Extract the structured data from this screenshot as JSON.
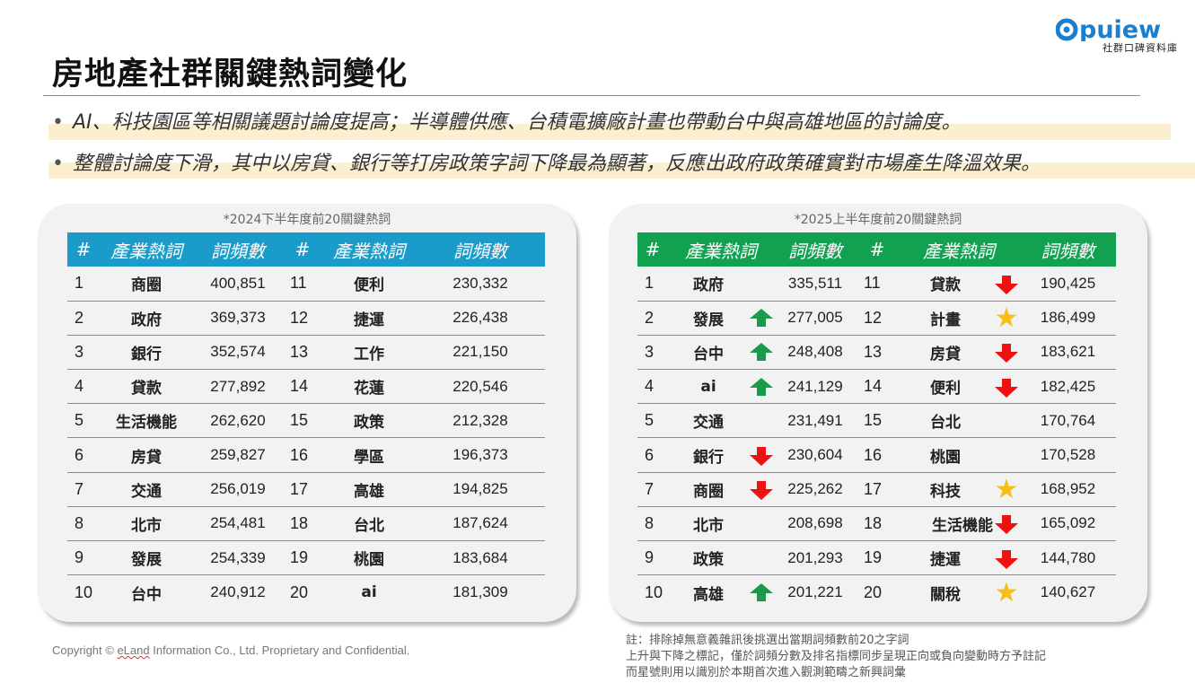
{
  "header": {
    "title": "房地產社群關鍵熱詞變化",
    "logo_word": "Opuiew",
    "logo_subtitle": "社群口碑資料庫",
    "logo_color": "#1b7fd0"
  },
  "bullets": [
    "AI、科技園區等相關議題討論度提高；半導體供應、台積電擴廠計畫也帶動台中與高雄地區的討論度。",
    "整體討論度下滑，其中以房貸、銀行等打房政策字詞下降最為顯著，反應出政府政策確實對市場產生降溫效果。"
  ],
  "highlight_color": "#fbefcf",
  "left_table": {
    "caption": "*2024下半年度前20關鍵熱詞",
    "header_color": "#1b9bc9",
    "columns": [
      "#",
      "產業熱詞",
      "詞頻數",
      "#",
      "產業熱詞",
      "詞頻數"
    ],
    "rows": [
      {
        "r1": "1",
        "k1": "商圈",
        "v1": "400,851",
        "r2": "11",
        "k2": "便利",
        "v2": "230,332"
      },
      {
        "r1": "2",
        "k1": "政府",
        "v1": "369,373",
        "r2": "12",
        "k2": "捷運",
        "v2": "226,438"
      },
      {
        "r1": "3",
        "k1": "銀行",
        "v1": "352,574",
        "r2": "13",
        "k2": "工作",
        "v2": "221,150"
      },
      {
        "r1": "4",
        "k1": "貸款",
        "v1": "277,892",
        "r2": "14",
        "k2": "花蓮",
        "v2": "220,546"
      },
      {
        "r1": "5",
        "k1": "生活機能",
        "v1": "262,620",
        "r2": "15",
        "k2": "政策",
        "v2": "212,328"
      },
      {
        "r1": "6",
        "k1": "房貸",
        "v1": "259,827",
        "r2": "16",
        "k2": "學區",
        "v2": "196,373"
      },
      {
        "r1": "7",
        "k1": "交通",
        "v1": "256,019",
        "r2": "17",
        "k2": "高雄",
        "v2": "194,825"
      },
      {
        "r1": "8",
        "k1": "北市",
        "v1": "254,481",
        "r2": "18",
        "k2": "台北",
        "v2": "187,624"
      },
      {
        "r1": "9",
        "k1": "發展",
        "v1": "254,339",
        "r2": "19",
        "k2": "桃園",
        "v2": "183,684"
      },
      {
        "r1": "10",
        "k1": "台中",
        "v1": "240,912",
        "r2": "20",
        "k2": "ai",
        "v2": "181,309"
      }
    ]
  },
  "right_table": {
    "caption": "*2025上半年度前20關鍵熱詞",
    "header_color": "#12a150",
    "columns": [
      "#",
      "產業熱詞",
      "詞頻數",
      "#",
      "產業熱詞",
      "詞頻數"
    ],
    "rows": [
      {
        "r1": "1",
        "k1": "政府",
        "m1": "",
        "v1": "335,511",
        "r2": "11",
        "k2": "貸款",
        "m2": "down",
        "v2": "190,425"
      },
      {
        "r1": "2",
        "k1": "發展",
        "m1": "up",
        "v1": "277,005",
        "r2": "12",
        "k2": "計畫",
        "m2": "star",
        "v2": "186,499"
      },
      {
        "r1": "3",
        "k1": "台中",
        "m1": "up",
        "v1": "248,408",
        "r2": "13",
        "k2": "房貸",
        "m2": "down",
        "v2": "183,621"
      },
      {
        "r1": "4",
        "k1": "ai",
        "m1": "up",
        "v1": "241,129",
        "r2": "14",
        "k2": "便利",
        "m2": "down",
        "v2": "182,425"
      },
      {
        "r1": "5",
        "k1": "交通",
        "m1": "",
        "v1": "231,491",
        "r2": "15",
        "k2": "台北",
        "m2": "",
        "v2": "170,764"
      },
      {
        "r1": "6",
        "k1": "銀行",
        "m1": "down",
        "v1": "230,604",
        "r2": "16",
        "k2": "桃園",
        "m2": "",
        "v2": "170,528"
      },
      {
        "r1": "7",
        "k1": "商圈",
        "m1": "down",
        "v1": "225,262",
        "r2": "17",
        "k2": "科技",
        "m2": "star",
        "v2": "168,952"
      },
      {
        "r1": "8",
        "k1": "北市",
        "m1": "",
        "v1": "208,698",
        "r2": "18",
        "k2": "生活機能",
        "m2": "down",
        "v2": "165,092"
      },
      {
        "r1": "9",
        "k1": "政策",
        "m1": "",
        "v1": "201,293",
        "r2": "19",
        "k2": "捷運",
        "m2": "down",
        "v2": "144,780"
      },
      {
        "r1": "10",
        "k1": "高雄",
        "m1": "up",
        "v1": "201,221",
        "r2": "20",
        "k2": "關稅",
        "m2": "star",
        "v2": "140,627"
      }
    ],
    "marker_colors": {
      "up": "#1a9a4a",
      "down": "#ee1111",
      "star": "#f7be16"
    }
  },
  "notes": [
    "註：排除掉無意義雜訊後挑選出當期詞頻數前20之字詞",
    "上升與下降之標記，僅於詞頻分數及排名指標同步呈現正向或負向變動時方予註記",
    "而星號則用以識別於本期首次進入觀測範疇之新興詞彙"
  ],
  "footer": {
    "copyright_prefix": "Copyright © ",
    "copyright_brand": "eLand",
    "copyright_suffix": " Information Co., Ltd. Proprietary and Confidential."
  }
}
